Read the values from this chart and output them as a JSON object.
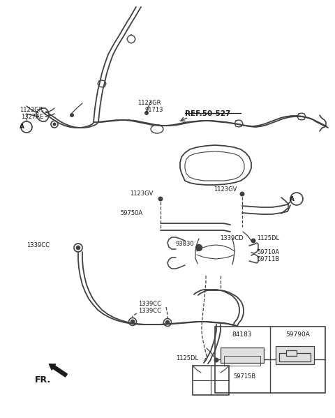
{
  "bg_color": "#ffffff",
  "line_color": "#404040",
  "text_color": "#1a1a1a",
  "figsize": [
    4.8,
    5.99
  ],
  "dpi": 100,
  "xlim": [
    0,
    480
  ],
  "ylim": [
    0,
    599
  ]
}
